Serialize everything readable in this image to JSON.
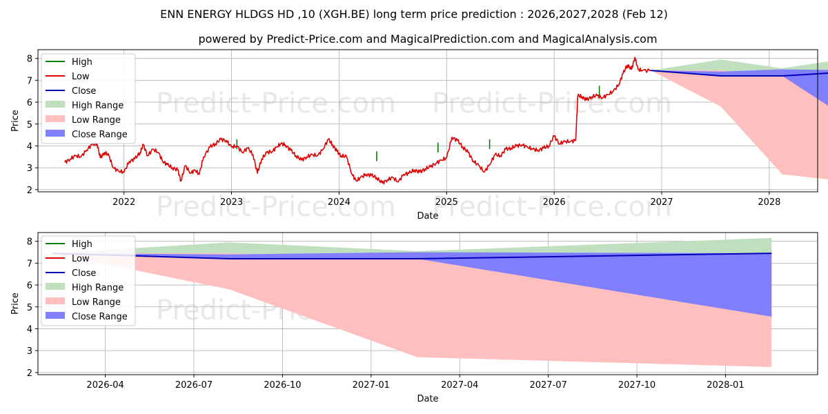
{
  "page": {
    "title": "ENN ENERGY HLDGS HD ,10 (XGH.BE) long term price prediction : 2026,2027,2028 (Feb 12)",
    "subtitle": "powered by Predict-Price.com and MagicalPrediction.com and MagicalAnalysis.com",
    "watermark": "Predict-Price.com"
  },
  "colors": {
    "high": "#008000",
    "low": "#dd0000",
    "close": "#0000bb",
    "high_range": "#bfdfbf",
    "low_range": "#ffbfbf",
    "close_range": "#8080ff",
    "grid": "#b0b0b0"
  },
  "legend": {
    "high": "High",
    "low": "Low",
    "close": "Close",
    "high_range": "High Range",
    "low_range": "Low Range",
    "close_range": "Close Range"
  },
  "chart_data": [
    {
      "type": "line",
      "xlabel": "Date",
      "ylabel": "Price",
      "xlim": [
        2021.2,
        2028.45
      ],
      "ylim": [
        1.9,
        8.4
      ],
      "x_ticks": [
        2022,
        2023,
        2024,
        2025,
        2026,
        2027,
        2028
      ],
      "x_tick_labels": [
        "2022",
        "2023",
        "2024",
        "2025",
        "2026",
        "2027",
        "2028"
      ],
      "y_ticks": [
        2,
        3,
        4,
        5,
        6,
        7,
        8
      ],
      "y_tick_labels": [
        "2",
        "3",
        "4",
        "5",
        "6",
        "7",
        "8"
      ],
      "grid": true,
      "legend_position": "upper-left",
      "history_low": [
        [
          2021.45,
          3.25
        ],
        [
          2021.5,
          3.4
        ],
        [
          2021.55,
          3.55
        ],
        [
          2021.6,
          3.5
        ],
        [
          2021.65,
          3.8
        ],
        [
          2021.7,
          4.05
        ],
        [
          2021.75,
          4.1
        ],
        [
          2021.78,
          3.45
        ],
        [
          2021.82,
          3.7
        ],
        [
          2021.86,
          3.55
        ],
        [
          2021.9,
          3.0
        ],
        [
          2021.95,
          2.85
        ],
        [
          2022.0,
          2.8
        ],
        [
          2022.05,
          3.3
        ],
        [
          2022.1,
          3.4
        ],
        [
          2022.15,
          3.7
        ],
        [
          2022.18,
          4.05
        ],
        [
          2022.22,
          3.55
        ],
        [
          2022.27,
          3.85
        ],
        [
          2022.32,
          3.7
        ],
        [
          2022.36,
          3.3
        ],
        [
          2022.4,
          3.15
        ],
        [
          2022.45,
          3.0
        ],
        [
          2022.5,
          2.9
        ],
        [
          2022.53,
          2.4
        ],
        [
          2022.57,
          3.1
        ],
        [
          2022.62,
          2.75
        ],
        [
          2022.66,
          2.9
        ],
        [
          2022.7,
          2.7
        ],
        [
          2022.74,
          3.5
        ],
        [
          2022.8,
          3.95
        ],
        [
          2022.85,
          4.1
        ],
        [
          2022.9,
          4.3
        ],
        [
          2022.95,
          4.25
        ],
        [
          2023.0,
          3.95
        ],
        [
          2023.05,
          4.0
        ],
        [
          2023.1,
          3.7
        ],
        [
          2023.15,
          3.9
        ],
        [
          2023.2,
          3.6
        ],
        [
          2023.24,
          2.75
        ],
        [
          2023.28,
          3.4
        ],
        [
          2023.33,
          3.7
        ],
        [
          2023.38,
          3.75
        ],
        [
          2023.42,
          3.95
        ],
        [
          2023.46,
          4.1
        ],
        [
          2023.5,
          4.05
        ],
        [
          2023.55,
          3.8
        ],
        [
          2023.6,
          3.55
        ],
        [
          2023.65,
          3.35
        ],
        [
          2023.7,
          3.5
        ],
        [
          2023.75,
          3.6
        ],
        [
          2023.8,
          3.55
        ],
        [
          2023.85,
          3.85
        ],
        [
          2023.9,
          4.3
        ],
        [
          2023.94,
          4.05
        ],
        [
          2023.98,
          3.75
        ],
        [
          2024.02,
          3.55
        ],
        [
          2024.07,
          3.5
        ],
        [
          2024.12,
          2.7
        ],
        [
          2024.16,
          2.4
        ],
        [
          2024.2,
          2.55
        ],
        [
          2024.25,
          2.7
        ],
        [
          2024.3,
          2.65
        ],
        [
          2024.35,
          2.55
        ],
        [
          2024.4,
          2.3
        ],
        [
          2024.45,
          2.45
        ],
        [
          2024.5,
          2.55
        ],
        [
          2024.55,
          2.35
        ],
        [
          2024.6,
          2.7
        ],
        [
          2024.65,
          2.75
        ],
        [
          2024.7,
          2.9
        ],
        [
          2024.75,
          2.8
        ],
        [
          2024.8,
          2.95
        ],
        [
          2024.85,
          3.05
        ],
        [
          2024.9,
          3.2
        ],
        [
          2024.95,
          3.35
        ],
        [
          2025.0,
          3.45
        ],
        [
          2025.05,
          4.4
        ],
        [
          2025.1,
          4.25
        ],
        [
          2025.15,
          3.95
        ],
        [
          2025.2,
          3.7
        ],
        [
          2025.25,
          3.3
        ],
        [
          2025.3,
          3.1
        ],
        [
          2025.35,
          2.8
        ],
        [
          2025.4,
          3.15
        ],
        [
          2025.45,
          3.6
        ],
        [
          2025.5,
          3.55
        ],
        [
          2025.55,
          3.85
        ],
        [
          2025.6,
          3.9
        ],
        [
          2025.65,
          4.0
        ],
        [
          2025.7,
          4.05
        ],
        [
          2025.75,
          3.95
        ],
        [
          2025.8,
          3.85
        ],
        [
          2025.85,
          3.8
        ],
        [
          2025.9,
          3.9
        ],
        [
          2025.95,
          4.0
        ],
        [
          2026.0,
          4.45
        ],
        [
          2026.05,
          4.1
        ],
        [
          2026.1,
          4.2
        ],
        [
          2026.15,
          4.2
        ],
        [
          2026.2,
          4.25
        ],
        [
          2026.22,
          6.3
        ],
        [
          2026.26,
          6.25
        ],
        [
          2026.3,
          6.1
        ],
        [
          2026.35,
          6.25
        ],
        [
          2026.4,
          6.3
        ],
        [
          2026.45,
          6.2
        ],
        [
          2026.5,
          6.35
        ],
        [
          2026.55,
          6.5
        ],
        [
          2026.6,
          6.8
        ],
        [
          2026.64,
          7.3
        ],
        [
          2026.68,
          7.7
        ],
        [
          2026.72,
          7.5
        ],
        [
          2026.75,
          8.05
        ],
        [
          2026.78,
          7.5
        ],
        [
          2026.82,
          7.45
        ],
        [
          2026.9,
          7.45
        ]
      ],
      "history_high_spikes": [
        [
          2023.05,
          4.3
        ],
        [
          2024.35,
          3.75
        ],
        [
          2024.92,
          4.15
        ],
        [
          2025.4,
          4.3
        ],
        [
          2026.42,
          6.75
        ]
      ],
      "forecast_dates": [
        2026.9,
        2027.55,
        2028.12,
        2028.95
      ],
      "close": [
        7.45,
        7.2,
        7.2,
        7.45
      ],
      "high_range": [
        [
          7.45,
          7.45
        ],
        [
          7.95,
          7.4
        ],
        [
          7.55,
          7.25
        ],
        [
          8.15,
          7.45
        ]
      ],
      "close_range": [
        [
          7.45,
          7.45
        ],
        [
          7.4,
          7.2
        ],
        [
          7.5,
          7.2
        ],
        [
          7.45,
          4.55
        ]
      ],
      "low_range": [
        [
          7.45,
          7.45
        ],
        [
          7.45,
          5.8
        ],
        [
          7.2,
          2.7
        ],
        [
          7.45,
          2.25
        ]
      ]
    },
    {
      "type": "line",
      "xlabel": "Date",
      "ylabel": "Price",
      "xlim": [
        2026.06,
        2028.26
      ],
      "ylim": [
        1.9,
        8.4
      ],
      "x_ticks": [
        2026.25,
        2026.5,
        2026.75,
        2027.0,
        2027.25,
        2027.5,
        2027.75,
        2028.0
      ],
      "x_tick_labels": [
        "2026-04",
        "2026-07",
        "2026-10",
        "2027-01",
        "2027-04",
        "2027-07",
        "2027-10",
        "2028-01"
      ],
      "y_ticks": [
        2,
        3,
        4,
        5,
        6,
        7,
        8
      ],
      "y_tick_labels": [
        "2",
        "3",
        "4",
        "5",
        "6",
        "7",
        "8"
      ],
      "grid": true,
      "legend_position": "upper-left",
      "forecast_dates": [
        2026.1,
        2026.6,
        2027.13,
        2028.13
      ],
      "close": [
        7.45,
        7.2,
        7.2,
        7.45
      ],
      "high_range": [
        [
          7.45,
          7.45
        ],
        [
          7.95,
          7.4
        ],
        [
          7.55,
          7.25
        ],
        [
          8.15,
          7.45
        ]
      ],
      "close_range": [
        [
          7.45,
          7.45
        ],
        [
          7.4,
          7.2
        ],
        [
          7.5,
          7.2
        ],
        [
          7.45,
          4.55
        ]
      ],
      "low_range": [
        [
          7.45,
          7.45
        ],
        [
          7.45,
          5.8
        ],
        [
          7.2,
          2.7
        ],
        [
          7.45,
          2.25
        ]
      ]
    }
  ]
}
